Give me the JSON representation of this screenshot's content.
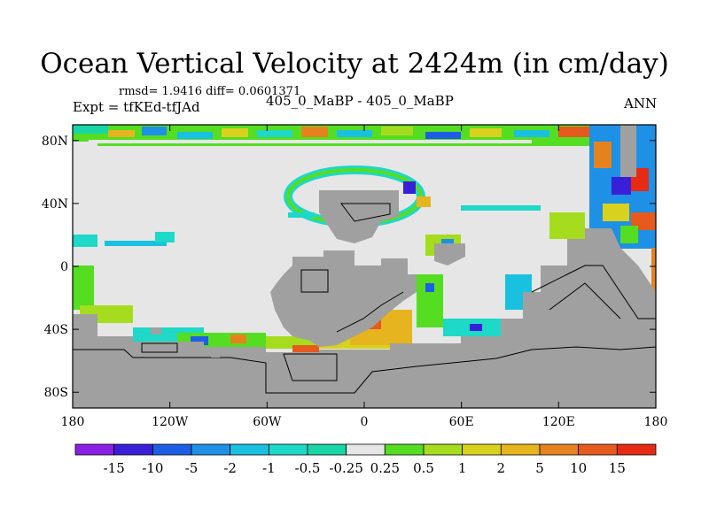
{
  "title": "Ocean Vertical Velocity at 2424m (in cm/day)",
  "stats": "rmsd= 1.9416 diff= 0.0601371",
  "expt": "Expt = tfKEd-tfJAd",
  "cases": "405_0_MaBP - 405_0_MaBP",
  "season": "ANN",
  "lat_ticks": [
    "80N",
    "40N",
    "0",
    "40S",
    "80S"
  ],
  "lon_ticks": [
    "180",
    "120W",
    "60W",
    "0",
    "60E",
    "120E",
    "180"
  ],
  "colorbar": {
    "labels": [
      "-15",
      "-10",
      "-5",
      "-2",
      "-1",
      "-0.5",
      "-0.25",
      "0.25",
      "0.5",
      "1",
      "2",
      "5",
      "10",
      "15"
    ],
    "colors": [
      "#8a1fe6",
      "#3a1fd8",
      "#1e5ee6",
      "#1e90e6",
      "#19c0e0",
      "#1ed8c8",
      "#19d6a6",
      "#e6e6e6",
      "#55dd22",
      "#a6dc1e",
      "#d8d21e",
      "#e6b41e",
      "#e6821e",
      "#e65a1e",
      "#e62a14"
    ]
  },
  "colors": {
    "land": "#a0a0a0",
    "ocean_zero": "#e6e6e6"
  }
}
